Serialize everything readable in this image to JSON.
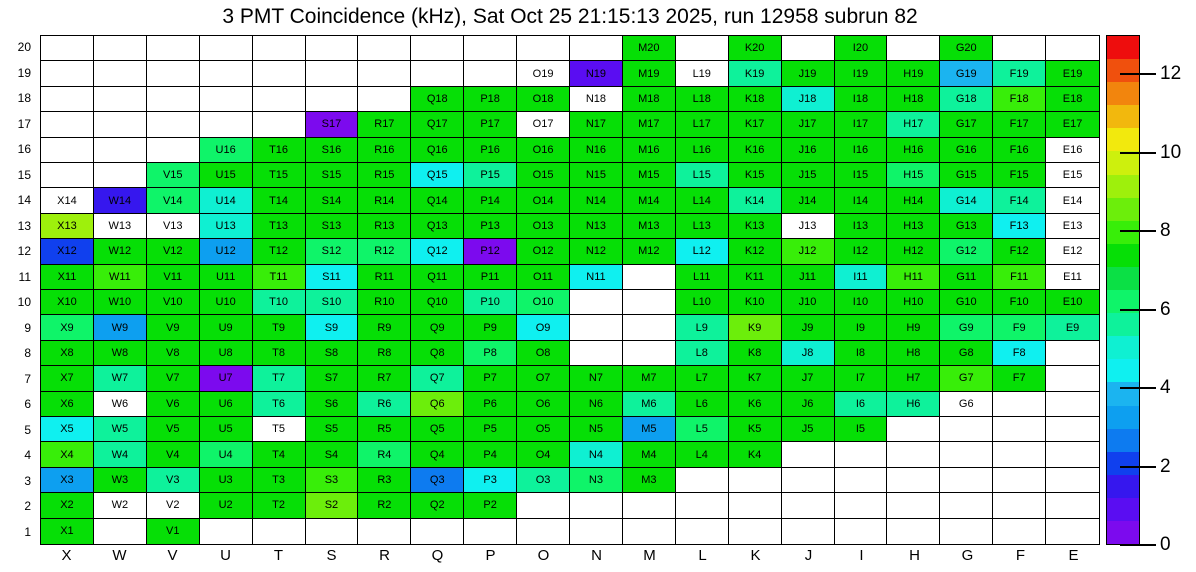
{
  "chart_data": {
    "type": "heatmap",
    "title": "3 PMT Coincidence (kHz), Sat Oct 25 21:15:13 2025, run 12958 subrun 82",
    "unit": "kHz",
    "run": "12958",
    "subrun": "82",
    "timestamp": "Sat Oct 25 21:15:13 2025",
    "xlabel_ticks": [
      "X",
      "W",
      "V",
      "U",
      "T",
      "S",
      "R",
      "Q",
      "P",
      "O",
      "N",
      "M",
      "L",
      "K",
      "J",
      "I",
      "H",
      "G",
      "F",
      "E"
    ],
    "ylabel_ticks": [
      "20",
      "19",
      "18",
      "17",
      "16",
      "15",
      "14",
      "13",
      "12",
      "11",
      "10",
      "9",
      "8",
      "7",
      "6",
      "5",
      "4",
      "3",
      "2",
      "1"
    ],
    "value_range": [
      0,
      13
    ],
    "colorbar_ticks": [
      0,
      2,
      4,
      6,
      8,
      10,
      12
    ],
    "colorbar_bands_bottom_to_top": [
      "#7C0AEE",
      "#5A0DF2",
      "#3617EE",
      "#1040EE",
      "#0D7BF0",
      "#0D9FF0",
      "#1BB4F0",
      "#0FF0F0",
      "#0FF0D2",
      "#0EF29B",
      "#0FF469",
      "#0BE045",
      "#06DF06",
      "#38EE09",
      "#6CEE0B",
      "#9EF00C",
      "#CDF00D",
      "#F2E90D",
      "#F2B80D",
      "#F2850D",
      "#F0500D",
      "#EE0D0D"
    ],
    "palette": {
      "W": {
        "hex": "#FFFFFF",
        "value": null,
        "meaning": "channel present, no rate"
      },
      "V": {
        "hex": "#7C0AEE",
        "value": 0.4
      },
      "BV2": {
        "hex": "#5A0DF2",
        "value": 1.0
      },
      "BV": {
        "hex": "#3617EE",
        "value": 1.5
      },
      "B": {
        "hex": "#1040EE",
        "value": 2.2
      },
      "MB": {
        "hex": "#0D7BF0",
        "value": 2.9
      },
      "LB": {
        "hex": "#0D9FF0",
        "value": 3.3
      },
      "SK": {
        "hex": "#1BB4F0",
        "value": 3.7
      },
      "C": {
        "hex": "#0FF0F0",
        "value": 4.2
      },
      "TC": {
        "hex": "#0FF0D2",
        "value": 4.7
      },
      "ST": {
        "hex": "#0EF29B",
        "value": 5.3
      },
      "SP": {
        "hex": "#0FF469",
        "value": 5.9
      },
      "G": {
        "hex": "#06DF06",
        "value": 6.9
      },
      "BG": {
        "hex": "#38EE09",
        "value": 8.1
      },
      "YG": {
        "hex": "#6CEE0B",
        "value": 8.8
      },
      "YG2": {
        "hex": "#9EF00C",
        "value": 9.4
      }
    },
    "cells": [
      [
        null,
        null,
        null,
        null,
        null,
        null,
        null,
        null,
        null,
        null,
        null,
        [
          "M20",
          "G"
        ],
        null,
        [
          "K20",
          "G"
        ],
        null,
        [
          "I20",
          "G"
        ],
        null,
        [
          "G20",
          "G"
        ],
        null,
        null
      ],
      [
        null,
        null,
        null,
        null,
        null,
        null,
        null,
        null,
        null,
        [
          "O19",
          "W"
        ],
        [
          "N19",
          "BV2"
        ],
        [
          "M19",
          "G"
        ],
        [
          "L19",
          "W"
        ],
        [
          "K19",
          "ST"
        ],
        [
          "J19",
          "G"
        ],
        [
          "I19",
          "G"
        ],
        [
          "H19",
          "G"
        ],
        [
          "G19",
          "SK"
        ],
        [
          "F19",
          "ST"
        ],
        [
          "E19",
          "G"
        ]
      ],
      [
        null,
        null,
        null,
        null,
        null,
        null,
        null,
        [
          "Q18",
          "G"
        ],
        [
          "P18",
          "G"
        ],
        [
          "O18",
          "G"
        ],
        [
          "N18",
          "W"
        ],
        [
          "M18",
          "G"
        ],
        [
          "L18",
          "G"
        ],
        [
          "K18",
          "G"
        ],
        [
          "J18",
          "TC"
        ],
        [
          "I18",
          "G"
        ],
        [
          "H18",
          "G"
        ],
        [
          "G18",
          "ST"
        ],
        [
          "F18",
          "BG"
        ],
        [
          "E18",
          "G"
        ]
      ],
      [
        null,
        null,
        null,
        null,
        null,
        [
          "S17",
          "V"
        ],
        [
          "R17",
          "G"
        ],
        [
          "Q17",
          "G"
        ],
        [
          "P17",
          "G"
        ],
        [
          "O17",
          "W"
        ],
        [
          "N17",
          "G"
        ],
        [
          "M17",
          "G"
        ],
        [
          "L17",
          "G"
        ],
        [
          "K17",
          "G"
        ],
        [
          "J17",
          "G"
        ],
        [
          "I17",
          "G"
        ],
        [
          "H17",
          "ST"
        ],
        [
          "G17",
          "G"
        ],
        [
          "F17",
          "G"
        ],
        [
          "E17",
          "G"
        ]
      ],
      [
        null,
        null,
        null,
        [
          "U16",
          "SP"
        ],
        [
          "T16",
          "G"
        ],
        [
          "S16",
          "G"
        ],
        [
          "R16",
          "G"
        ],
        [
          "Q16",
          "G"
        ],
        [
          "P16",
          "G"
        ],
        [
          "O16",
          "G"
        ],
        [
          "N16",
          "G"
        ],
        [
          "M16",
          "G"
        ],
        [
          "L16",
          "G"
        ],
        [
          "K16",
          "G"
        ],
        [
          "J16",
          "G"
        ],
        [
          "I16",
          "G"
        ],
        [
          "H16",
          "G"
        ],
        [
          "G16",
          "G"
        ],
        [
          "F16",
          "G"
        ],
        [
          "E16",
          "W"
        ]
      ],
      [
        null,
        null,
        [
          "V15",
          "SP"
        ],
        [
          "U15",
          "G"
        ],
        [
          "T15",
          "G"
        ],
        [
          "S15",
          "G"
        ],
        [
          "R15",
          "G"
        ],
        [
          "Q15",
          "C"
        ],
        [
          "P15",
          "ST"
        ],
        [
          "O15",
          "G"
        ],
        [
          "N15",
          "G"
        ],
        [
          "M15",
          "G"
        ],
        [
          "L15",
          "ST"
        ],
        [
          "K15",
          "G"
        ],
        [
          "J15",
          "G"
        ],
        [
          "I15",
          "G"
        ],
        [
          "H15",
          "SP"
        ],
        [
          "G15",
          "G"
        ],
        [
          "F15",
          "G"
        ],
        [
          "E15",
          "W"
        ]
      ],
      [
        [
          "X14",
          "W"
        ],
        [
          "W14",
          "BV"
        ],
        [
          "V14",
          "SP"
        ],
        [
          "U14",
          "TC"
        ],
        [
          "T14",
          "G"
        ],
        [
          "S14",
          "G"
        ],
        [
          "R14",
          "G"
        ],
        [
          "Q14",
          "G"
        ],
        [
          "P14",
          "G"
        ],
        [
          "O14",
          "G"
        ],
        [
          "N14",
          "G"
        ],
        [
          "M14",
          "G"
        ],
        [
          "L14",
          "G"
        ],
        [
          "K14",
          "ST"
        ],
        [
          "J14",
          "G"
        ],
        [
          "I14",
          "G"
        ],
        [
          "H14",
          "G"
        ],
        [
          "G14",
          "TC"
        ],
        [
          "F14",
          "ST"
        ],
        [
          "E14",
          "W"
        ]
      ],
      [
        [
          "X13",
          "YG2"
        ],
        [
          "W13",
          "W"
        ],
        [
          "V13",
          "W"
        ],
        [
          "U13",
          "TC"
        ],
        [
          "T13",
          "G"
        ],
        [
          "S13",
          "G"
        ],
        [
          "R13",
          "G"
        ],
        [
          "Q13",
          "G"
        ],
        [
          "P13",
          "G"
        ],
        [
          "O13",
          "G"
        ],
        [
          "N13",
          "G"
        ],
        [
          "M13",
          "G"
        ],
        [
          "L13",
          "G"
        ],
        [
          "K13",
          "G"
        ],
        [
          "J13",
          "W"
        ],
        [
          "I13",
          "G"
        ],
        [
          "H13",
          "G"
        ],
        [
          "G13",
          "G"
        ],
        [
          "F13",
          "C"
        ],
        [
          "E13",
          "W"
        ]
      ],
      [
        [
          "X12",
          "B"
        ],
        [
          "W12",
          "G"
        ],
        [
          "V12",
          "G"
        ],
        [
          "U12",
          "LB"
        ],
        [
          "T12",
          "G"
        ],
        [
          "S12",
          "SP"
        ],
        [
          "R12",
          "SP"
        ],
        [
          "Q12",
          "C"
        ],
        [
          "P12",
          "V"
        ],
        [
          "O12",
          "G"
        ],
        [
          "N12",
          "G"
        ],
        [
          "M12",
          "G"
        ],
        [
          "L12",
          "C"
        ],
        [
          "K12",
          "G"
        ],
        [
          "J12",
          "BG"
        ],
        [
          "I12",
          "G"
        ],
        [
          "H12",
          "G"
        ],
        [
          "G12",
          "SP"
        ],
        [
          "F12",
          "G"
        ],
        [
          "E12",
          "W"
        ]
      ],
      [
        [
          "X11",
          "G"
        ],
        [
          "W11",
          "BG"
        ],
        [
          "V11",
          "G"
        ],
        [
          "U11",
          "G"
        ],
        [
          "T11",
          "BG"
        ],
        [
          "S11",
          "C"
        ],
        [
          "R11",
          "G"
        ],
        [
          "Q11",
          "G"
        ],
        [
          "P11",
          "G"
        ],
        [
          "O11",
          "G"
        ],
        [
          "N11",
          "C"
        ],
        null,
        [
          "L11",
          "G"
        ],
        [
          "K11",
          "G"
        ],
        [
          "J11",
          "G"
        ],
        [
          "I11",
          "TC"
        ],
        [
          "H11",
          "BG"
        ],
        [
          "G11",
          "G"
        ],
        [
          "F11",
          "BG"
        ],
        [
          "E11",
          "W"
        ]
      ],
      [
        [
          "X10",
          "G"
        ],
        [
          "W10",
          "G"
        ],
        [
          "V10",
          "G"
        ],
        [
          "U10",
          "G"
        ],
        [
          "T10",
          "ST"
        ],
        [
          "S10",
          "ST"
        ],
        [
          "R10",
          "G"
        ],
        [
          "Q10",
          "G"
        ],
        [
          "P10",
          "ST"
        ],
        [
          "O10",
          "SP"
        ],
        null,
        null,
        [
          "L10",
          "G"
        ],
        [
          "K10",
          "G"
        ],
        [
          "J10",
          "G"
        ],
        [
          "I10",
          "G"
        ],
        [
          "H10",
          "G"
        ],
        [
          "G10",
          "G"
        ],
        [
          "F10",
          "G"
        ],
        [
          "E10",
          "G"
        ]
      ],
      [
        [
          "X9",
          "SP"
        ],
        [
          "W9",
          "LB"
        ],
        [
          "V9",
          "G"
        ],
        [
          "U9",
          "G"
        ],
        [
          "T9",
          "G"
        ],
        [
          "S9",
          "C"
        ],
        [
          "R9",
          "G"
        ],
        [
          "Q9",
          "G"
        ],
        [
          "P9",
          "G"
        ],
        [
          "O9",
          "C"
        ],
        null,
        null,
        [
          "L9",
          "ST"
        ],
        [
          "K9",
          "YG"
        ],
        [
          "J9",
          "G"
        ],
        [
          "I9",
          "G"
        ],
        [
          "H9",
          "G"
        ],
        [
          "G9",
          "SP"
        ],
        [
          "F9",
          "SP"
        ],
        [
          "E9",
          "ST"
        ]
      ],
      [
        [
          "X8",
          "G"
        ],
        [
          "W8",
          "G"
        ],
        [
          "V8",
          "G"
        ],
        [
          "U8",
          "G"
        ],
        [
          "T8",
          "G"
        ],
        [
          "S8",
          "G"
        ],
        [
          "R8",
          "G"
        ],
        [
          "Q8",
          "G"
        ],
        [
          "P8",
          "SP"
        ],
        [
          "O8",
          "G"
        ],
        null,
        null,
        [
          "L8",
          "ST"
        ],
        [
          "K8",
          "G"
        ],
        [
          "J8",
          "TC"
        ],
        [
          "I8",
          "G"
        ],
        [
          "H8",
          "G"
        ],
        [
          "G8",
          "G"
        ],
        [
          "F8",
          "C"
        ],
        null
      ],
      [
        [
          "X7",
          "G"
        ],
        [
          "W7",
          "ST"
        ],
        [
          "V7",
          "G"
        ],
        [
          "U7",
          "V"
        ],
        [
          "T7",
          "ST"
        ],
        [
          "S7",
          "G"
        ],
        [
          "R7",
          "G"
        ],
        [
          "Q7",
          "ST"
        ],
        [
          "P7",
          "G"
        ],
        [
          "O7",
          "G"
        ],
        [
          "N7",
          "G"
        ],
        [
          "M7",
          "G"
        ],
        [
          "L7",
          "G"
        ],
        [
          "K7",
          "G"
        ],
        [
          "J7",
          "G"
        ],
        [
          "I7",
          "G"
        ],
        [
          "H7",
          "G"
        ],
        [
          "G7",
          "BG"
        ],
        [
          "F7",
          "G"
        ],
        null
      ],
      [
        [
          "X6",
          "G"
        ],
        [
          "W6",
          "W"
        ],
        [
          "V6",
          "G"
        ],
        [
          "U6",
          "G"
        ],
        [
          "T6",
          "ST"
        ],
        [
          "S6",
          "G"
        ],
        [
          "R6",
          "ST"
        ],
        [
          "Q6",
          "YG"
        ],
        [
          "P6",
          "G"
        ],
        [
          "O6",
          "G"
        ],
        [
          "N6",
          "G"
        ],
        [
          "M6",
          "ST"
        ],
        [
          "L6",
          "G"
        ],
        [
          "K6",
          "G"
        ],
        [
          "J6",
          "G"
        ],
        [
          "I6",
          "ST"
        ],
        [
          "H6",
          "ST"
        ],
        [
          "G6",
          "W"
        ],
        null,
        null
      ],
      [
        [
          "X5",
          "C"
        ],
        [
          "W5",
          "ST"
        ],
        [
          "V5",
          "G"
        ],
        [
          "U5",
          "G"
        ],
        [
          "T5",
          "W"
        ],
        [
          "S5",
          "G"
        ],
        [
          "R5",
          "G"
        ],
        [
          "Q5",
          "G"
        ],
        [
          "P5",
          "G"
        ],
        [
          "O5",
          "G"
        ],
        [
          "N5",
          "G"
        ],
        [
          "M5",
          "LB"
        ],
        [
          "L5",
          "SP"
        ],
        [
          "K5",
          "G"
        ],
        [
          "J5",
          "G"
        ],
        [
          "I5",
          "G"
        ],
        null,
        null,
        null,
        null
      ],
      [
        [
          "X4",
          "BG"
        ],
        [
          "W4",
          "ST"
        ],
        [
          "V4",
          "G"
        ],
        [
          "U4",
          "SP"
        ],
        [
          "T4",
          "G"
        ],
        [
          "S4",
          "G"
        ],
        [
          "R4",
          "SP"
        ],
        [
          "Q4",
          "G"
        ],
        [
          "P4",
          "G"
        ],
        [
          "O4",
          "G"
        ],
        [
          "N4",
          "TC"
        ],
        [
          "M4",
          "G"
        ],
        [
          "L4",
          "G"
        ],
        [
          "K4",
          "G"
        ],
        null,
        null,
        null,
        null,
        null,
        null
      ],
      [
        [
          "X3",
          "LB"
        ],
        [
          "W3",
          "G"
        ],
        [
          "V3",
          "ST"
        ],
        [
          "U3",
          "G"
        ],
        [
          "T3",
          "G"
        ],
        [
          "S3",
          "BG"
        ],
        [
          "R3",
          "G"
        ],
        [
          "Q3",
          "MB"
        ],
        [
          "P3",
          "C"
        ],
        [
          "O3",
          "ST"
        ],
        [
          "N3",
          "SP"
        ],
        [
          "M3",
          "G"
        ],
        null,
        null,
        null,
        null,
        null,
        null,
        null,
        null
      ],
      [
        [
          "X2",
          "G"
        ],
        [
          "W2",
          "W"
        ],
        [
          "V2",
          "W"
        ],
        [
          "U2",
          "G"
        ],
        [
          "T2",
          "G"
        ],
        [
          "S2",
          "YG"
        ],
        [
          "R2",
          "G"
        ],
        [
          "Q2",
          "G"
        ],
        [
          "P2",
          "G"
        ],
        null,
        null,
        null,
        null,
        null,
        null,
        null,
        null,
        null,
        null,
        null
      ],
      [
        [
          "X1",
          "G"
        ],
        null,
        [
          "V1",
          "G"
        ],
        null,
        null,
        null,
        null,
        null,
        null,
        null,
        null,
        null,
        null,
        null,
        null,
        null,
        null,
        null,
        null,
        null
      ]
    ]
  }
}
